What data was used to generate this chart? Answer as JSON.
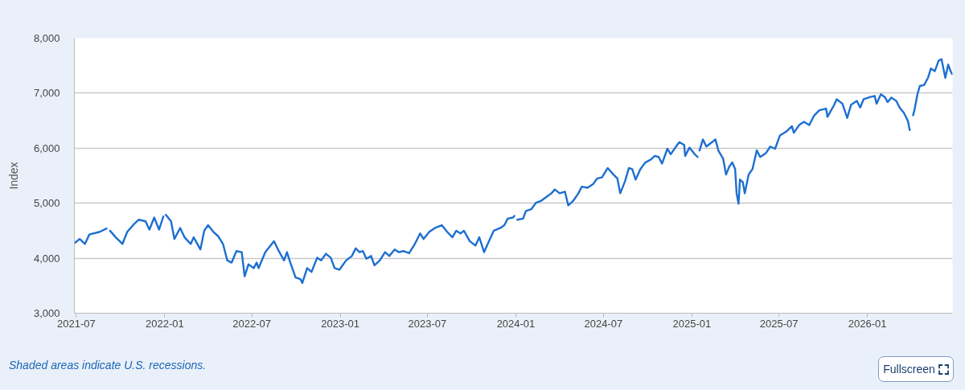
{
  "chart_data": {
    "type": "line",
    "ylabel": "Index",
    "annotations": [
      "Shaded areas indicate U.S. recessions.",
      "Fullscreen"
    ],
    "x": [
      "2021-06-28",
      "2021-07-08",
      "2021-07-19",
      "2021-07-28",
      "2021-08-19",
      "2021-09-02",
      "2021-09-06",
      "2021-09-09",
      "2021-09-21",
      "2021-10-05",
      "2021-10-15",
      "2021-10-29",
      "2021-11-08",
      "2021-11-22",
      "2021-11-30",
      "2021-12-10",
      "2021-12-20",
      "2021-12-29",
      "2021-12-31",
      "2022-01-03",
      "2022-01-14",
      "2022-01-21",
      "2022-02-02",
      "2022-02-11",
      "2022-02-24",
      "2022-03-02",
      "2022-03-16",
      "2022-03-24",
      "2022-04-01",
      "2022-04-12",
      "2022-04-22",
      "2022-05-02",
      "2022-05-11",
      "2022-05-20",
      "2022-05-30",
      "2022-06-10",
      "2022-06-16",
      "2022-06-24",
      "2022-07-05",
      "2022-07-11",
      "2022-07-15",
      "2022-07-29",
      "2022-08-16",
      "2022-08-26",
      "2022-09-06",
      "2022-09-12",
      "2022-09-19",
      "2022-09-30",
      "2022-10-10",
      "2022-10-14",
      "2022-10-24",
      "2022-11-02",
      "2022-11-14",
      "2022-11-22",
      "2022-12-02",
      "2022-12-12",
      "2022-12-20",
      "2022-12-30",
      "2023-01-13",
      "2023-01-25",
      "2023-02-02",
      "2023-02-10",
      "2023-02-17",
      "2023-02-24",
      "2023-03-06",
      "2023-03-13",
      "2023-03-24",
      "2023-04-04",
      "2023-04-13",
      "2023-04-24",
      "2023-05-02",
      "2023-05-12",
      "2023-05-24",
      "2023-06-05",
      "2023-06-16",
      "2023-06-23",
      "2023-07-05",
      "2023-07-17",
      "2023-07-31",
      "2023-08-11",
      "2023-08-22",
      "2023-08-30",
      "2023-09-08",
      "2023-09-15",
      "2023-09-27",
      "2023-10-09",
      "2023-10-17",
      "2023-10-27",
      "2023-11-06",
      "2023-11-16",
      "2023-11-30",
      "2023-12-08",
      "2023-12-15",
      "2023-12-26",
      "2023-12-29",
      "2024-01-01",
      "2024-01-04",
      "2024-01-16",
      "2024-01-22",
      "2024-02-02",
      "2024-02-12",
      "2024-02-22",
      "2024-03-07",
      "2024-03-15",
      "2024-03-22",
      "2024-04-01",
      "2024-04-12",
      "2024-04-19",
      "2024-04-29",
      "2024-05-10",
      "2024-05-17",
      "2024-05-29",
      "2024-06-10",
      "2024-06-18",
      "2024-06-28",
      "2024-07-10",
      "2024-07-22",
      "2024-07-30",
      "2024-08-05",
      "2024-08-15",
      "2024-08-23",
      "2024-08-30",
      "2024-09-06",
      "2024-09-16",
      "2024-09-26",
      "2024-10-07",
      "2024-10-16",
      "2024-10-24",
      "2024-10-31",
      "2024-11-11",
      "2024-11-18",
      "2024-11-29",
      "2024-12-06",
      "2024-12-16",
      "2024-12-18",
      "2024-12-27",
      "2025-01-07",
      "2025-01-13",
      "2025-01-15",
      "2025-01-17",
      "2025-01-24",
      "2025-01-31",
      "2025-02-12",
      "2025-02-19",
      "2025-02-25",
      "2025-03-07",
      "2025-03-13",
      "2025-03-20",
      "2025-03-26",
      "2025-04-01",
      "2025-04-04",
      "2025-04-08",
      "2025-04-11",
      "2025-04-17",
      "2025-04-21",
      "2025-04-29",
      "2025-05-07",
      "2025-05-16",
      "2025-05-23",
      "2025-06-04",
      "2025-06-13",
      "2025-06-23",
      "2025-07-03",
      "2025-07-16",
      "2025-07-28",
      "2025-08-01",
      "2025-08-12",
      "2025-08-22",
      "2025-09-02",
      "2025-09-12",
      "2025-09-23",
      "2025-10-07",
      "2025-10-10",
      "2025-10-24",
      "2025-10-29",
      "2025-11-10",
      "2025-11-20",
      "2025-11-28",
      "2025-12-10",
      "2025-12-17",
      "2025-12-24",
      "2026-01-07",
      "2026-01-16",
      "2026-01-20",
      "2026-01-29",
      "2026-02-06",
      "2026-02-12",
      "2026-02-20",
      "2026-03-02",
      "2026-03-09",
      "2026-03-18",
      "2026-03-26",
      "2026-03-30",
      "2026-04-02",
      "2026-04-06",
      "2026-04-09",
      "2026-04-15",
      "2026-04-20",
      "2026-04-29",
      "2026-05-07",
      "2026-05-13",
      "2026-05-21",
      "2026-05-29",
      "2026-06-04",
      "2026-06-12",
      "2026-06-18",
      "2026-06-23",
      "2026-06-26"
    ],
    "series": [
      {
        "color": "#1d6fd1",
        "values": [
          4280,
          4350,
          4260,
          4430,
          4480,
          4540,
          null,
          4500,
          4380,
          4260,
          4480,
          4620,
          4700,
          4670,
          4520,
          4740,
          4520,
          4760,
          null,
          4790,
          4670,
          4350,
          4550,
          4380,
          4260,
          4380,
          4160,
          4500,
          4600,
          4480,
          4400,
          4260,
          3960,
          3920,
          4130,
          4110,
          3670,
          3890,
          3820,
          3920,
          3820,
          4110,
          4310,
          4130,
          3960,
          4110,
          3920,
          3650,
          3620,
          3550,
          3820,
          3750,
          4010,
          3960,
          4080,
          4010,
          3820,
          3790,
          3960,
          4040,
          4180,
          4110,
          4130,
          3990,
          4040,
          3870,
          3960,
          4110,
          4040,
          4160,
          4110,
          4130,
          4090,
          4260,
          4450,
          4350,
          4480,
          4550,
          4600,
          4480,
          4380,
          4500,
          4450,
          4500,
          4310,
          4230,
          4380,
          4110,
          4310,
          4500,
          4550,
          4600,
          4720,
          4740,
          4770,
          null,
          4700,
          4720,
          4860,
          4890,
          5010,
          5040,
          5130,
          5180,
          5250,
          5180,
          5210,
          4960,
          5040,
          5180,
          5300,
          5280,
          5350,
          5450,
          5470,
          5640,
          5520,
          5450,
          5180,
          5400,
          5640,
          5620,
          5430,
          5620,
          5740,
          5790,
          5860,
          5840,
          5720,
          5990,
          5890,
          6030,
          6110,
          6060,
          5860,
          6010,
          5890,
          5840,
          null,
          5960,
          6160,
          6030,
          6110,
          6160,
          5960,
          5810,
          5520,
          5670,
          5740,
          5620,
          5180,
          4990,
          5430,
          5380,
          5180,
          5520,
          5620,
          5960,
          5840,
          5910,
          6030,
          5990,
          6230,
          6300,
          6400,
          6280,
          6420,
          6480,
          6420,
          6590,
          6690,
          6720,
          6570,
          6790,
          6890,
          6810,
          6550,
          6790,
          6860,
          6740,
          6890,
          6930,
          6950,
          6810,
          6980,
          6930,
          6840,
          6920,
          6860,
          6740,
          6640,
          6500,
          6330,
          null,
          6600,
          6700,
          6980,
          7130,
          7150,
          7280,
          7450,
          7400,
          7590,
          7620,
          7280,
          7520,
          7400,
          7350
        ]
      }
    ],
    "xlim": [
      "2021-06-27",
      "2026-06-27"
    ],
    "ylim": [
      3000,
      8000
    ],
    "xticks": [
      "2021-07",
      "2022-01",
      "2022-07",
      "2023-01",
      "2023-07",
      "2024-01",
      "2024-07",
      "2025-01",
      "2025-07",
      "2026-01"
    ],
    "yticks": [
      {
        "value": 3000,
        "label": "3,000"
      },
      {
        "value": 4000,
        "label": "4,000"
      },
      {
        "value": 5000,
        "label": "5,000"
      },
      {
        "value": 6000,
        "label": "6,000"
      },
      {
        "value": 7000,
        "label": "7,000"
      },
      {
        "value": 8000,
        "label": "8,000"
      }
    ],
    "grid": "y",
    "line_style": "solid"
  }
}
